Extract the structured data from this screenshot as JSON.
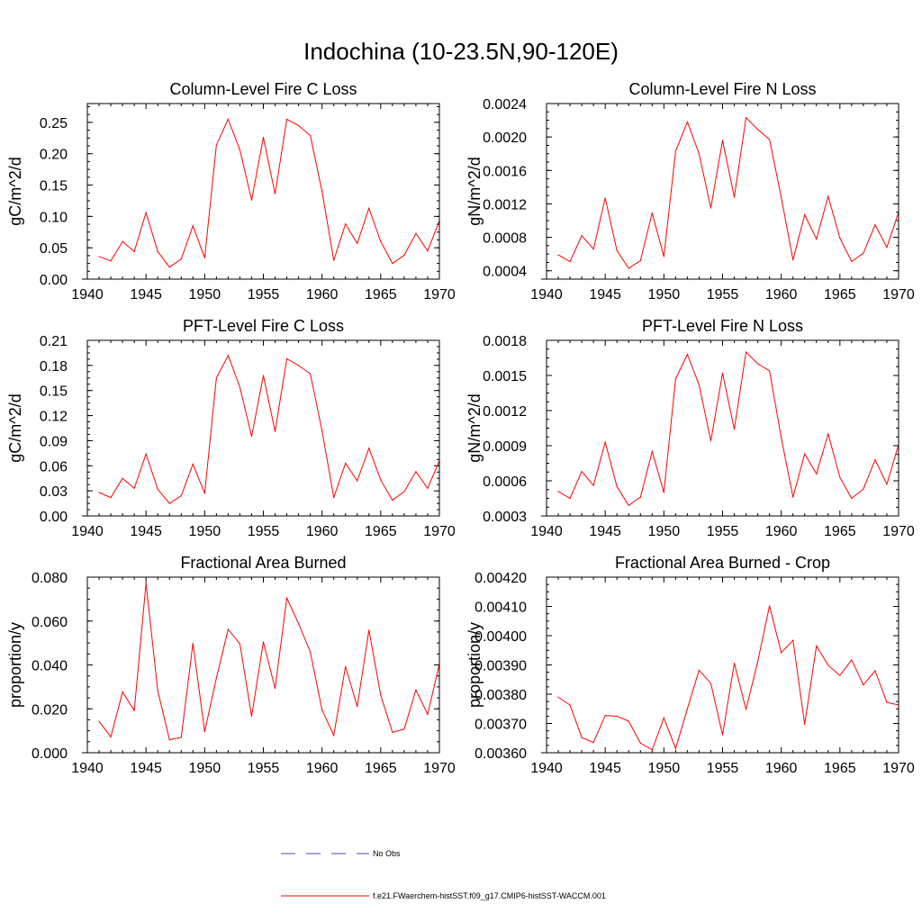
{
  "figure": {
    "title": "Indochina (10-23.5N,90-120E)"
  },
  "colors": {
    "model_line": "#ff0000",
    "obs_line": "#4b4bb4",
    "axis": "#000000"
  },
  "legend": [
    {
      "label": "No Obs",
      "style": "dashed",
      "color": "#4b4bb4"
    },
    {
      "label": "f.e21.FWaerchem-histSST.f09_g17.CMIP6-histSST-WACCM.001",
      "style": "solid",
      "color": "#ff0000"
    }
  ],
  "chart_data": [
    {
      "type": "line",
      "title": "Column-Level Fire C Loss",
      "ylabel": "gC/m^2/d",
      "xlim": [
        1940,
        1970
      ],
      "ylim": [
        0,
        0.28
      ],
      "xticks": [
        1940,
        1945,
        1950,
        1955,
        1960,
        1965,
        1970
      ],
      "yticks": [
        0,
        0.05,
        0.1,
        0.15,
        0.2,
        0.25
      ],
      "ytick_labels": [
        "0.00",
        "0.05",
        "0.10",
        "0.15",
        "0.20",
        "0.25"
      ],
      "x": [
        1941,
        1942,
        1943,
        1944,
        1945,
        1946,
        1947,
        1948,
        1949,
        1950,
        1951,
        1952,
        1953,
        1954,
        1955,
        1956,
        1957,
        1958,
        1959,
        1960,
        1961,
        1962,
        1963,
        1964,
        1965,
        1966,
        1967,
        1968,
        1969,
        1970
      ],
      "series": [
        {
          "values": [
            0.036,
            0.029,
            0.06,
            0.044,
            0.106,
            0.044,
            0.019,
            0.032,
            0.085,
            0.034,
            0.214,
            0.255,
            0.206,
            0.126,
            0.226,
            0.136,
            0.255,
            0.245,
            0.229,
            0.14,
            0.03,
            0.088,
            0.057,
            0.113,
            0.06,
            0.025,
            0.038,
            0.073,
            0.045,
            0.093
          ]
        }
      ]
    },
    {
      "type": "line",
      "title": "Column-Level Fire N Loss",
      "ylabel": "gN/m^2/d",
      "xlim": [
        1940,
        1970
      ],
      "ylim": [
        0.0003,
        0.0024
      ],
      "xticks": [
        1940,
        1945,
        1950,
        1955,
        1960,
        1965,
        1970
      ],
      "yticks": [
        0.0004,
        0.0008,
        0.0012,
        0.0016,
        0.002,
        0.0024
      ],
      "ytick_labels": [
        "0.0004",
        "0.0008",
        "0.0012",
        "0.0016",
        "0.0020",
        "0.0024"
      ],
      "x": [
        1941,
        1942,
        1943,
        1944,
        1945,
        1946,
        1947,
        1948,
        1949,
        1950,
        1951,
        1952,
        1953,
        1954,
        1955,
        1956,
        1957,
        1958,
        1959,
        1960,
        1961,
        1962,
        1963,
        1964,
        1965,
        1966,
        1967,
        1968,
        1969,
        1970
      ],
      "series": [
        {
          "values": [
            0.00059,
            0.00051,
            0.00082,
            0.00066,
            0.00127,
            0.00064,
            0.00043,
            0.00052,
            0.00109,
            0.00057,
            0.00183,
            0.00218,
            0.0018,
            0.00115,
            0.00196,
            0.00128,
            0.00223,
            0.00209,
            0.00197,
            0.00128,
            0.00053,
            0.00107,
            0.00078,
            0.00129,
            0.00079,
            0.00051,
            0.00061,
            0.00095,
            0.00068,
            0.0011
          ]
        }
      ]
    },
    {
      "type": "line",
      "title": "PFT-Level Fire C Loss",
      "ylabel": "gC/m^2/d",
      "xlim": [
        1940,
        1970
      ],
      "ylim": [
        0,
        0.21
      ],
      "xticks": [
        1940,
        1945,
        1950,
        1955,
        1960,
        1965,
        1970
      ],
      "yticks": [
        0,
        0.03,
        0.06,
        0.09,
        0.12,
        0.15,
        0.18,
        0.21
      ],
      "ytick_labels": [
        "0.00",
        "0.03",
        "0.06",
        "0.09",
        "0.12",
        "0.15",
        "0.18",
        "0.21"
      ],
      "x": [
        1941,
        1942,
        1943,
        1944,
        1945,
        1946,
        1947,
        1948,
        1949,
        1950,
        1951,
        1952,
        1953,
        1954,
        1955,
        1956,
        1957,
        1958,
        1959,
        1960,
        1961,
        1962,
        1963,
        1964,
        1965,
        1966,
        1967,
        1968,
        1969,
        1970
      ],
      "series": [
        {
          "values": [
            0.028,
            0.022,
            0.045,
            0.033,
            0.074,
            0.032,
            0.015,
            0.024,
            0.062,
            0.027,
            0.165,
            0.192,
            0.154,
            0.095,
            0.168,
            0.101,
            0.188,
            0.18,
            0.17,
            0.102,
            0.022,
            0.063,
            0.042,
            0.081,
            0.043,
            0.019,
            0.029,
            0.053,
            0.033,
            0.066
          ]
        }
      ]
    },
    {
      "type": "line",
      "title": "PFT-Level Fire N Loss",
      "ylabel": "gN/m^2/d",
      "xlim": [
        1940,
        1970
      ],
      "ylim": [
        0.0003,
        0.0018
      ],
      "xticks": [
        1940,
        1945,
        1950,
        1955,
        1960,
        1965,
        1970
      ],
      "yticks": [
        0.0003,
        0.0006,
        0.0009,
        0.0012,
        0.0015,
        0.0018
      ],
      "ytick_labels": [
        "0.0003",
        "0.0006",
        "0.0009",
        "0.0012",
        "0.0015",
        "0.0018"
      ],
      "x": [
        1941,
        1942,
        1943,
        1944,
        1945,
        1946,
        1947,
        1948,
        1949,
        1950,
        1951,
        1952,
        1953,
        1954,
        1955,
        1956,
        1957,
        1958,
        1959,
        1960,
        1961,
        1962,
        1963,
        1964,
        1965,
        1966,
        1967,
        1968,
        1969,
        1970
      ],
      "series": [
        {
          "values": [
            0.00051,
            0.00045,
            0.00068,
            0.00056,
            0.00093,
            0.00055,
            0.00039,
            0.00046,
            0.00085,
            0.0005,
            0.00147,
            0.00168,
            0.00142,
            0.00094,
            0.00152,
            0.00104,
            0.0017,
            0.0016,
            0.00154,
            0.00097,
            0.00046,
            0.00083,
            0.00066,
            0.001,
            0.00063,
            0.00045,
            0.00053,
            0.00078,
            0.00057,
            0.00091
          ]
        }
      ]
    },
    {
      "type": "line",
      "title": "Fractional Area Burned",
      "ylabel": "proportion/y",
      "xlim": [
        1940,
        1970
      ],
      "ylim": [
        0,
        0.08
      ],
      "xticks": [
        1940,
        1945,
        1950,
        1955,
        1960,
        1965,
        1970
      ],
      "yticks": [
        0,
        0.02,
        0.04,
        0.06,
        0.08
      ],
      "ytick_labels": [
        "0.000",
        "0.020",
        "0.040",
        "0.060",
        "0.080"
      ],
      "x": [
        1941,
        1942,
        1943,
        1944,
        1945,
        1946,
        1947,
        1948,
        1949,
        1950,
        1951,
        1952,
        1953,
        1954,
        1955,
        1956,
        1957,
        1958,
        1959,
        1960,
        1961,
        1962,
        1963,
        1964,
        1965,
        1966,
        1967,
        1968,
        1969,
        1970
      ],
      "series": [
        {
          "values": [
            0.0143,
            0.0072,
            0.0277,
            0.0192,
            0.0773,
            0.0283,
            0.0059,
            0.007,
            0.0498,
            0.0096,
            0.0341,
            0.0562,
            0.0496,
            0.0166,
            0.0505,
            0.0293,
            0.0705,
            0.0588,
            0.0459,
            0.0195,
            0.0079,
            0.0393,
            0.0211,
            0.0559,
            0.0262,
            0.0093,
            0.0107,
            0.0286,
            0.0175,
            0.0405
          ]
        }
      ]
    },
    {
      "type": "line",
      "title": "Fractional Area Burned - Crop",
      "ylabel": "proportion/y",
      "xlim": [
        1940,
        1970
      ],
      "ylim": [
        0.0036,
        0.0042
      ],
      "xticks": [
        1940,
        1945,
        1950,
        1955,
        1960,
        1965,
        1970
      ],
      "yticks": [
        0.0036,
        0.0037,
        0.0038,
        0.0039,
        0.004,
        0.0041,
        0.0042
      ],
      "ytick_labels": [
        "0.00360",
        "0.00370",
        "0.00380",
        "0.00390",
        "0.00400",
        "0.00410",
        "0.00420"
      ],
      "x": [
        1941,
        1942,
        1943,
        1944,
        1945,
        1946,
        1947,
        1948,
        1949,
        1950,
        1951,
        1952,
        1953,
        1954,
        1955,
        1956,
        1957,
        1958,
        1959,
        1960,
        1961,
        1962,
        1963,
        1964,
        1965,
        1966,
        1967,
        1968,
        1969,
        1970
      ],
      "series": [
        {
          "values": [
            0.00379,
            0.003763,
            0.003652,
            0.003635,
            0.003727,
            0.003725,
            0.003708,
            0.003633,
            0.00361,
            0.003719,
            0.003614,
            0.00375,
            0.003882,
            0.003837,
            0.003661,
            0.003906,
            0.003748,
            0.003912,
            0.004102,
            0.003942,
            0.003984,
            0.003697,
            0.003965,
            0.003899,
            0.003864,
            0.003917,
            0.003832,
            0.00388,
            0.003772,
            0.003763
          ]
        }
      ]
    }
  ]
}
